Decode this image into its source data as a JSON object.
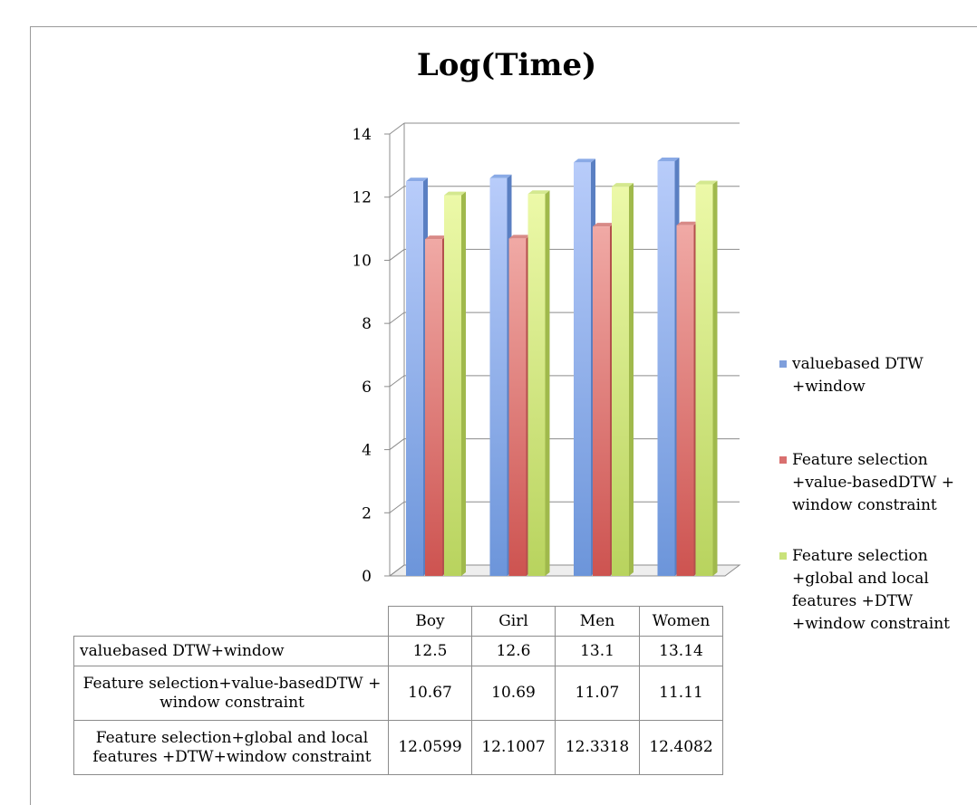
{
  "chart_data": {
    "type": "bar",
    "title": "Log(Time)",
    "categories": [
      "Boy",
      "Girl",
      "Men",
      "Women"
    ],
    "series": [
      {
        "name": "valuebased DTW+window",
        "legend_lines": [
          "valuebased DTW",
          "+window"
        ],
        "table_label": "valuebased DTW+window",
        "values": [
          12.5,
          12.6,
          13.1,
          13.14
        ],
        "display_values": [
          "12.5",
          "12.6",
          "13.1",
          "13.14"
        ],
        "color": "#7f9fdc"
      },
      {
        "name": "Feature selection+value-basedDTW + window constraint",
        "legend_lines": [
          "Feature selection",
          "+value-basedDTW +",
          "window constraint"
        ],
        "table_label_lines": [
          "Feature selection+value-basedDTW +",
          "window constraint"
        ],
        "values": [
          10.67,
          10.69,
          11.07,
          11.11
        ],
        "display_values": [
          "10.67",
          "10.69",
          "11.07",
          "11.11"
        ],
        "color": "#d9706f"
      },
      {
        "name": "Feature selection+global and local features +DTW+window constraint",
        "legend_lines": [
          "Feature selection",
          "+global and local",
          "features +DTW",
          "+window constraint"
        ],
        "table_label_lines": [
          "Feature selection+global and local",
          "features +DTW+window constraint"
        ],
        "values": [
          12.0599,
          12.1007,
          12.3318,
          12.4082
        ],
        "display_values": [
          "12.0599",
          "12.1007",
          "12.3318",
          "12.4082"
        ],
        "color": "#c9e27a"
      }
    ],
    "ylim": [
      0,
      14
    ],
    "yticks": [
      "0",
      "2",
      "4",
      "6",
      "8",
      "10",
      "12",
      "14"
    ],
    "grid": true,
    "legend_position": "right",
    "data_table": true
  }
}
